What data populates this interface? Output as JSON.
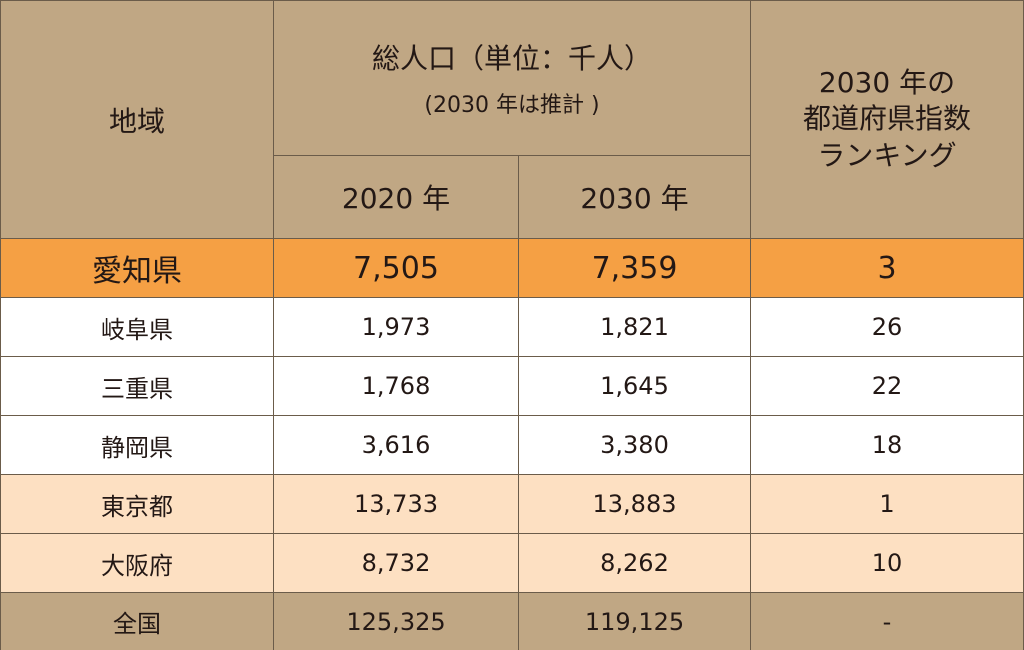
{
  "header": {
    "region": "地域",
    "population": "総人口（単位：千人）",
    "population_note": "(2030 年は推計 )",
    "year_2020": "2020 年",
    "year_2030": "2030 年",
    "ranking_line1": "2030 年の",
    "ranking_line2": "都道府県指数",
    "ranking_line3": "ランキング"
  },
  "rows": [
    {
      "region": "愛知県",
      "pop2020": "7,505",
      "pop2030": "7,359",
      "rank": "3"
    },
    {
      "region": "岐阜県",
      "pop2020": "1,973",
      "pop2030": "1,821",
      "rank": "26"
    },
    {
      "region": "三重県",
      "pop2020": "1,768",
      "pop2030": "1,645",
      "rank": "22"
    },
    {
      "region": "静岡県",
      "pop2020": "3,616",
      "pop2030": "3,380",
      "rank": "18"
    },
    {
      "region": "東京都",
      "pop2020": "13,733",
      "pop2030": "13,883",
      "rank": "1"
    },
    {
      "region": "大阪府",
      "pop2020": "8,732",
      "pop2030": "8,262",
      "rank": "10"
    },
    {
      "region": "全国",
      "pop2020": "125,325",
      "pop2030": "119,125",
      "rank": "-"
    }
  ],
  "colors": {
    "header": "#c0a784",
    "highlight": "#f5a044",
    "peach": "#fde0c2"
  }
}
